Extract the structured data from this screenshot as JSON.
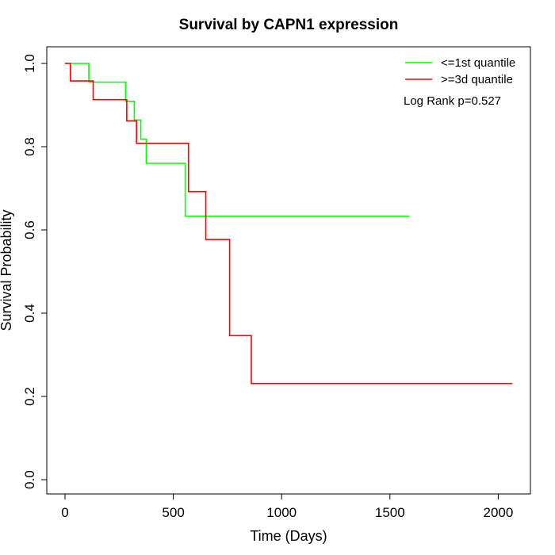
{
  "chart_data": {
    "type": "line",
    "title": "Survival by CAPN1 expression",
    "xlabel": "Time (Days)",
    "ylabel": "Survival Probability",
    "xlim": [
      0,
      2070
    ],
    "ylim": [
      0,
      1.0
    ],
    "x_ticks": [
      0,
      500,
      1000,
      1500,
      2000
    ],
    "y_ticks": [
      0.0,
      0.2,
      0.4,
      0.6,
      0.8,
      1.0
    ],
    "x_tick_labels": [
      "0",
      "500",
      "1000",
      "1500",
      "2000"
    ],
    "y_tick_labels": [
      "0.0",
      "0.2",
      "0.4",
      "0.6",
      "0.8",
      "1.0"
    ],
    "grid": false,
    "legend_position": "top-right",
    "annotation": "Log Rank p=0.527",
    "series": [
      {
        "name": "<=1st quantile",
        "color": "#00ff00",
        "step_x": [
          0,
          110,
          280,
          320,
          350,
          375,
          555,
          1590
        ],
        "step_y": [
          1.0,
          0.955,
          0.909,
          0.864,
          0.818,
          0.76,
          0.633,
          0.633
        ]
      },
      {
        "name": ">=3d quantile",
        "color": "#ff0000",
        "step_x": [
          0,
          25,
          130,
          285,
          330,
          570,
          650,
          760,
          860,
          2065
        ],
        "step_y": [
          1.0,
          0.958,
          0.913,
          0.862,
          0.808,
          0.692,
          0.577,
          0.346,
          0.231,
          0.231
        ]
      }
    ]
  }
}
